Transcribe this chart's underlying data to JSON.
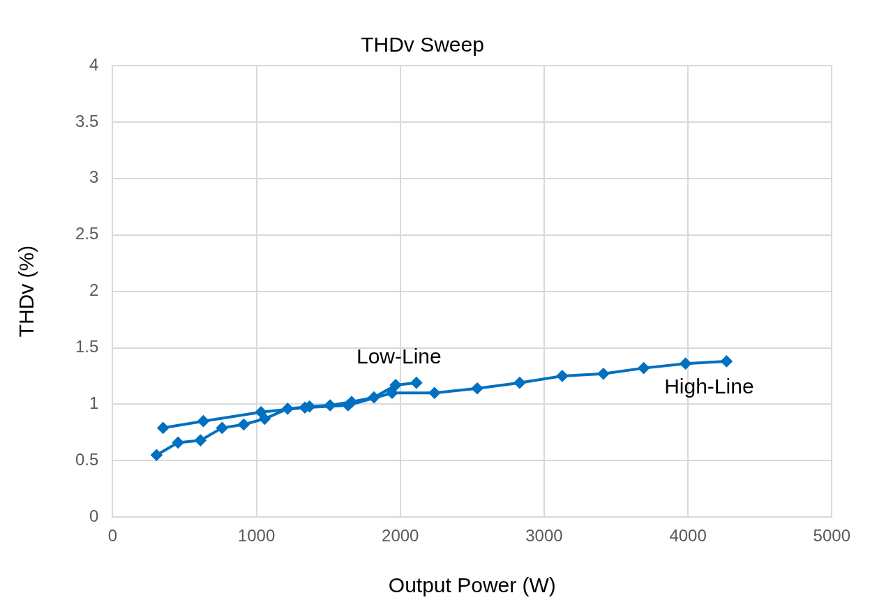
{
  "chart_data": {
    "type": "line",
    "title": "THDv Sweep",
    "xlabel": "Output Power (W)",
    "ylabel": "THDv (%)",
    "xlim": [
      0,
      5000
    ],
    "xticks": [
      0,
      1000,
      2000,
      3000,
      4000,
      5000
    ],
    "ylim": [
      0,
      4
    ],
    "yticks": [
      0,
      0.5,
      1,
      1.5,
      2,
      2.5,
      3,
      3.5,
      4
    ],
    "grid": true,
    "marker": "diamond",
    "line_style": "solid",
    "legend": false,
    "series": [
      {
        "name": "Low-Line",
        "color": "#0070c0",
        "x": [
          306,
          455,
          611,
          761,
          912,
          1057,
          1217,
          1369,
          1512,
          1662,
          1817,
          1968,
          2112
        ],
        "values": [
          0.55,
          0.66,
          0.68,
          0.79,
          0.82,
          0.87,
          0.96,
          0.98,
          0.99,
          1.02,
          1.06,
          1.17,
          1.19
        ]
      },
      {
        "name": "High-Line",
        "color": "#0070c0",
        "x": [
          351,
          631,
          1032,
          1337,
          1637,
          1943,
          2238,
          2535,
          2830,
          3126,
          3412,
          3692,
          3983,
          4268
        ],
        "values": [
          0.79,
          0.85,
          0.93,
          0.97,
          0.99,
          1.1,
          1.1,
          1.14,
          1.19,
          1.25,
          1.27,
          1.32,
          1.36,
          1.38
        ]
      }
    ]
  }
}
